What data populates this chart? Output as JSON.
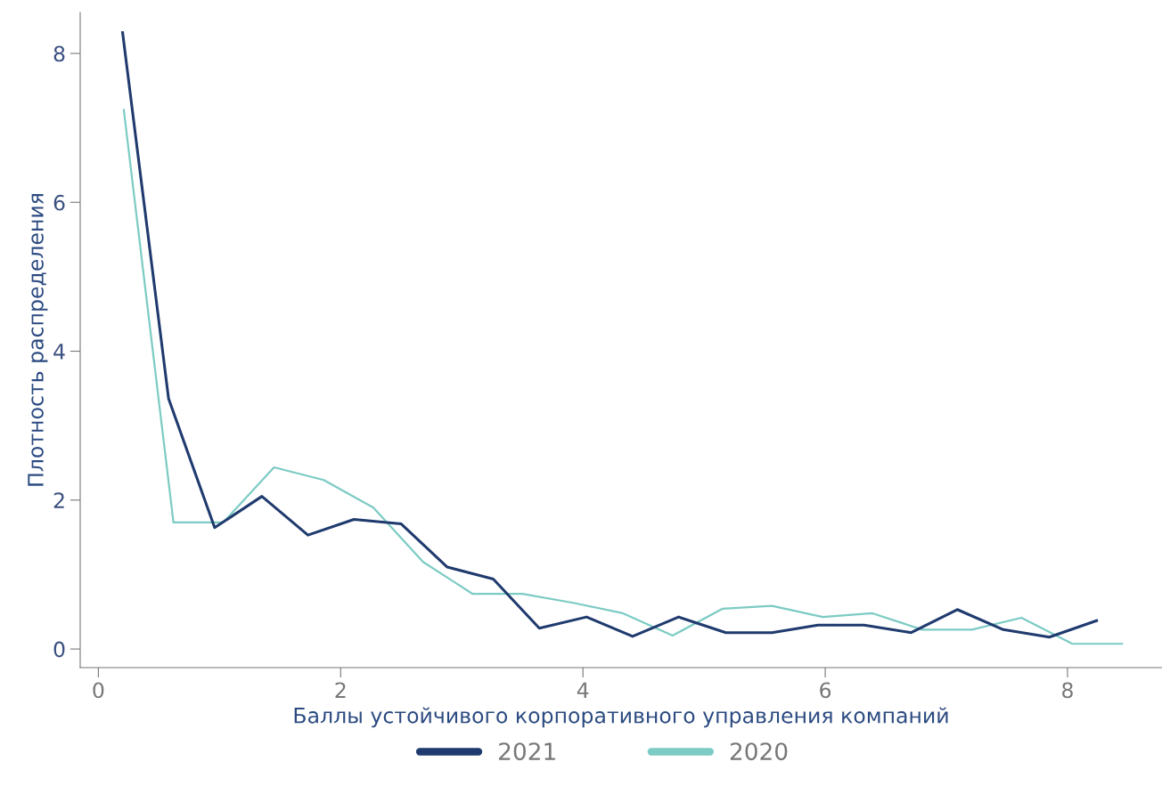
{
  "chart_data": {
    "type": "line",
    "xlabel": "Баллы устойчивого корпоративного управления компаний",
    "ylabel": "Плотность распределения",
    "xlim": [
      -0.15,
      8.78
    ],
    "ylim": [
      -0.25,
      8.55
    ],
    "xticks": [
      0,
      2,
      4,
      6,
      8
    ],
    "yticks": [
      0,
      2,
      4,
      6,
      8
    ],
    "grid": false,
    "legend": "bottom",
    "marker": "none",
    "line_style": "solid",
    "series": [
      {
        "name": "2021",
        "color": "#1f3a6e",
        "x": [
          0.2,
          0.58,
          0.96,
          1.35,
          1.73,
          2.11,
          2.5,
          2.88,
          3.26,
          3.64,
          4.03,
          4.41,
          4.79,
          5.18,
          5.56,
          5.94,
          6.32,
          6.71,
          7.09,
          7.47,
          7.85,
          8.24
        ],
        "values": [
          8.28,
          3.36,
          1.63,
          2.05,
          1.53,
          1.74,
          1.68,
          1.1,
          0.94,
          0.28,
          0.43,
          0.17,
          0.43,
          0.22,
          0.22,
          0.32,
          0.32,
          0.22,
          0.53,
          0.26,
          0.16,
          0.38
        ]
      },
      {
        "name": "2020",
        "color": "#7ccbc4",
        "x": [
          0.21,
          0.62,
          1.03,
          1.45,
          1.86,
          2.27,
          2.68,
          3.09,
          3.5,
          3.92,
          4.33,
          4.74,
          5.15,
          5.56,
          5.98,
          6.39,
          6.8,
          7.21,
          7.62,
          8.04,
          8.45
        ],
        "values": [
          7.24,
          1.7,
          1.7,
          2.44,
          2.27,
          1.9,
          1.17,
          0.74,
          0.74,
          0.62,
          0.48,
          0.18,
          0.54,
          0.58,
          0.43,
          0.48,
          0.26,
          0.26,
          0.42,
          0.07,
          0.07
        ]
      }
    ]
  }
}
